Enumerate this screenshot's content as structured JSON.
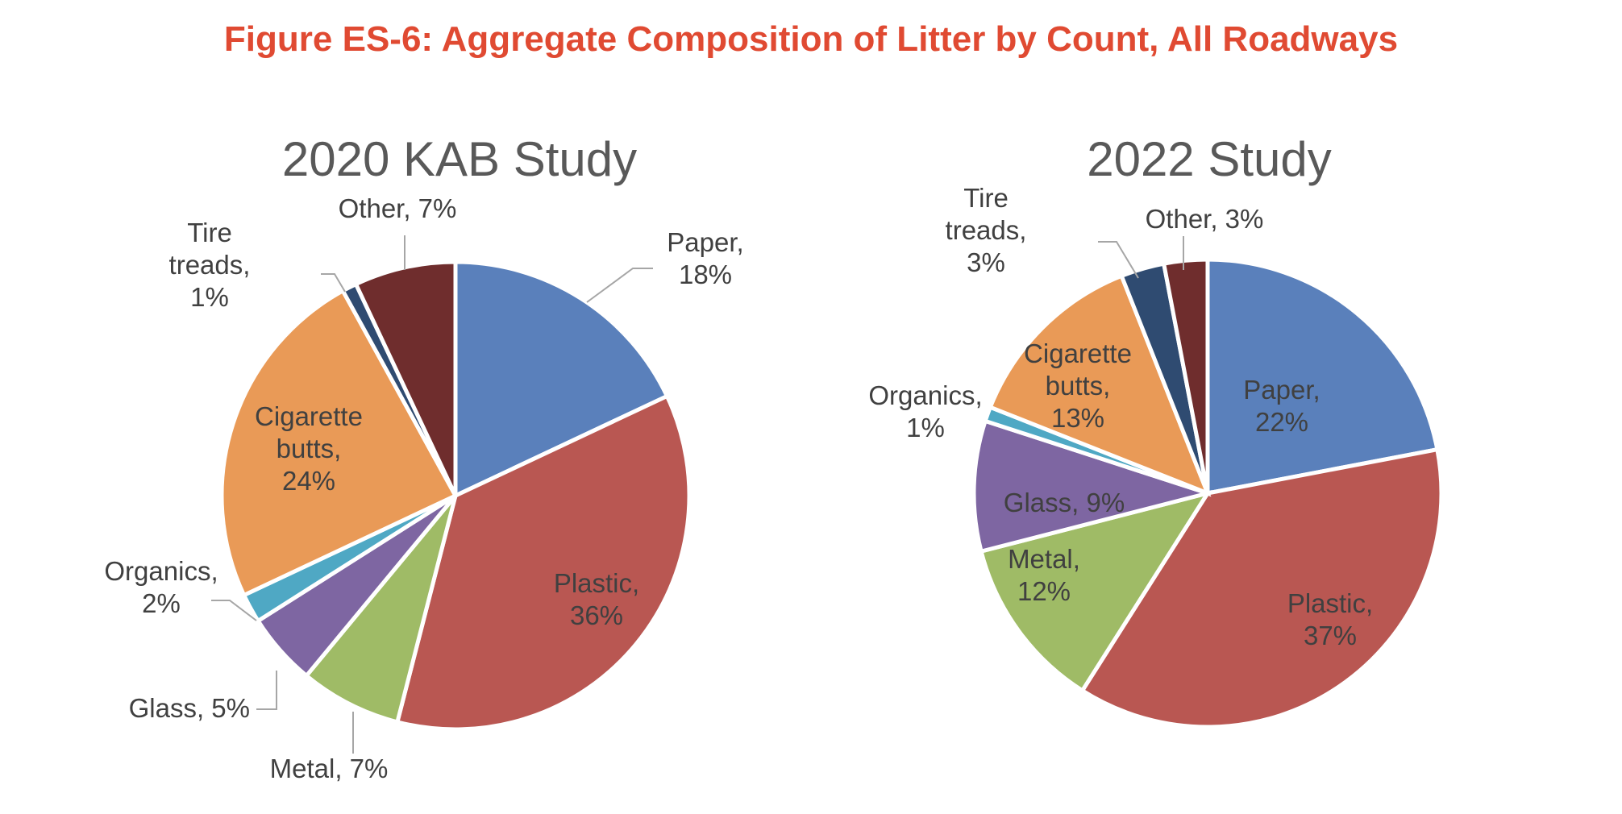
{
  "figure_title": "Figure ES-6: Aggregate Composition of Litter by Count, All Roadways",
  "colors": {
    "title": "#e04a32",
    "paper": "#5a80bb",
    "plastic": "#b95752",
    "metal": "#9fbb66",
    "glass": "#7e66a2",
    "organics": "#4fa8c4",
    "cigarette": "#e99a57",
    "tire": "#2f4b71",
    "other": "#6f2d2d"
  },
  "chart_data": [
    {
      "type": "pie",
      "title": "2020 KAB Study",
      "start": "12 o'clock, clockwise",
      "slices": [
        {
          "label": "Paper",
          "value": 18,
          "label_text": [
            "Paper,",
            "18%"
          ],
          "color_key": "paper"
        },
        {
          "label": "Plastic",
          "value": 36,
          "label_text": [
            "Plastic,",
            "36%"
          ],
          "color_key": "plastic"
        },
        {
          "label": "Metal",
          "value": 7,
          "label_text": [
            "Metal, 7%"
          ],
          "color_key": "metal"
        },
        {
          "label": "Glass",
          "value": 5,
          "label_text": [
            "Glass, 5%"
          ],
          "color_key": "glass"
        },
        {
          "label": "Organics",
          "value": 2,
          "label_text": [
            "Organics,",
            "2%"
          ],
          "color_key": "organics"
        },
        {
          "label": "Cigarette butts",
          "value": 24,
          "label_text": [
            "Cigarette",
            "butts,",
            "24%"
          ],
          "color_key": "cigarette"
        },
        {
          "label": "Tire treads",
          "value": 1,
          "label_text": [
            "Tire",
            "treads,",
            "1%"
          ],
          "color_key": "tire"
        },
        {
          "label": "Other",
          "value": 7,
          "label_text": [
            "Other, 7%"
          ],
          "color_key": "other"
        }
      ]
    },
    {
      "type": "pie",
      "title": "2022 Study",
      "start": "12 o'clock, clockwise",
      "slices": [
        {
          "label": "Paper",
          "value": 22,
          "label_text": [
            "Paper,",
            "22%"
          ],
          "color_key": "paper"
        },
        {
          "label": "Plastic",
          "value": 37,
          "label_text": [
            "Plastic,",
            "37%"
          ],
          "color_key": "plastic"
        },
        {
          "label": "Metal",
          "value": 12,
          "label_text": [
            "Metal,",
            "12%"
          ],
          "color_key": "metal"
        },
        {
          "label": "Glass",
          "value": 9,
          "label_text": [
            "Glass, 9%"
          ],
          "color_key": "glass"
        },
        {
          "label": "Organics",
          "value": 1,
          "label_text": [
            "Organics,",
            "1%"
          ],
          "color_key": "organics"
        },
        {
          "label": "Cigarette butts",
          "value": 13,
          "label_text": [
            "Cigarette",
            "butts,",
            "13%"
          ],
          "color_key": "cigarette"
        },
        {
          "label": "Tire treads",
          "value": 3,
          "label_text": [
            "Tire",
            "treads,",
            "3%"
          ],
          "color_key": "tire"
        },
        {
          "label": "Other",
          "value": 3,
          "label_text": [
            "Other, 3%"
          ],
          "color_key": "other"
        }
      ]
    }
  ]
}
